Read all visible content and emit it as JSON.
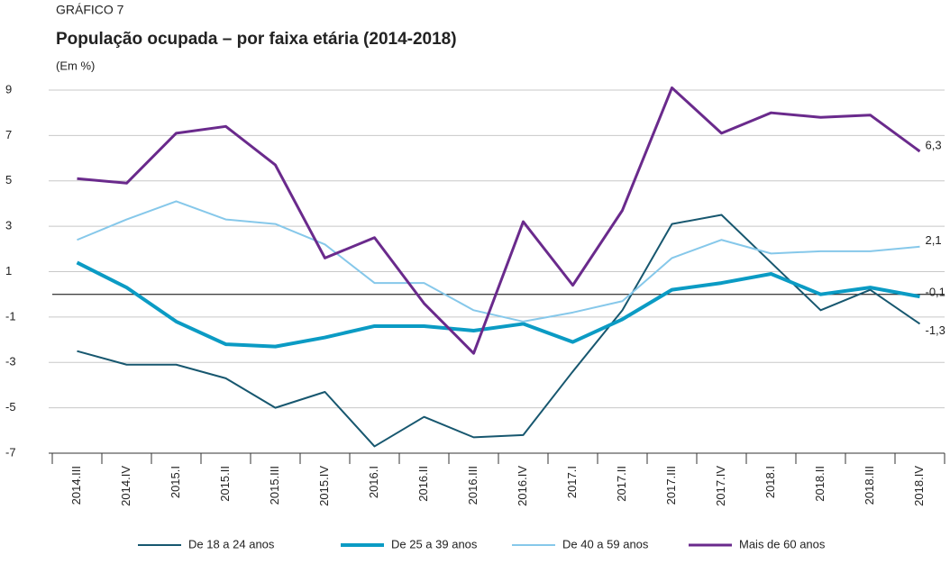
{
  "chart_data": {
    "type": "line",
    "supertitle": "GRÁFICO 7",
    "title": "População ocupada – por faixa etária (2014-2018)",
    "subtitle": "(Em %)",
    "categories": [
      "2014.III",
      "2014.IV",
      "2015.I",
      "2015.II",
      "2015.III",
      "2015.IV",
      "2016.I",
      "2016.II",
      "2016.III",
      "2016.IV",
      "2017.I",
      "2017.II",
      "2017.III",
      "2017.IV",
      "2018.I",
      "2018.II",
      "2018.III",
      "2018.IV"
    ],
    "series": [
      {
        "name": "De 18 a 24 anos",
        "color": "#17576f",
        "width": 2,
        "values": [
          -2.5,
          -3.1,
          -3.1,
          -3.7,
          -5.0,
          -4.3,
          -6.7,
          -5.4,
          -6.3,
          -6.2,
          -3.4,
          -0.7,
          3.1,
          3.5,
          1.4,
          -0.7,
          0.2,
          -1.3
        ],
        "value_labels": [
          null,
          null,
          null,
          null,
          null,
          null,
          null,
          null,
          null,
          null,
          null,
          null,
          null,
          null,
          null,
          null,
          null,
          "-1,3"
        ]
      },
      {
        "name": "De 25 a 39 anos",
        "color": "#0b9bc4",
        "width": 4,
        "values": [
          1.4,
          0.3,
          -1.2,
          -2.2,
          -2.3,
          -1.9,
          -1.4,
          -1.4,
          -1.6,
          -1.3,
          -2.1,
          -1.1,
          0.2,
          0.5,
          0.9,
          0.0,
          0.3,
          -0.1
        ],
        "value_labels": [
          null,
          null,
          null,
          null,
          null,
          null,
          null,
          null,
          null,
          null,
          null,
          null,
          null,
          null,
          null,
          null,
          null,
          "-0,1"
        ]
      },
      {
        "name": "De 40 a 59 anos",
        "color": "#86c8ea",
        "width": 2,
        "values": [
          2.4,
          3.3,
          4.1,
          3.3,
          3.1,
          2.2,
          0.5,
          0.5,
          -0.7,
          -1.2,
          -0.8,
          -0.3,
          1.6,
          2.4,
          1.8,
          1.9,
          1.9,
          2.1
        ],
        "value_labels": [
          null,
          null,
          null,
          null,
          null,
          null,
          null,
          null,
          null,
          null,
          null,
          null,
          null,
          null,
          null,
          null,
          null,
          "2,1"
        ]
      },
      {
        "name": "Mais de 60 anos",
        "color": "#6a2a8c",
        "width": 3,
        "values": [
          5.1,
          4.9,
          7.1,
          7.4,
          5.7,
          1.6,
          2.5,
          -0.4,
          -2.6,
          3.2,
          0.4,
          3.7,
          9.1,
          7.1,
          8.0,
          7.8,
          7.9,
          6.3
        ],
        "value_labels": [
          null,
          null,
          null,
          null,
          null,
          null,
          null,
          null,
          null,
          null,
          null,
          null,
          null,
          null,
          null,
          null,
          null,
          "6,3"
        ]
      }
    ],
    "ylim": [
      -7,
      9
    ],
    "yticks": [
      -7,
      -5,
      -3,
      -1,
      1,
      3,
      5,
      7,
      9
    ],
    "grid": true
  }
}
